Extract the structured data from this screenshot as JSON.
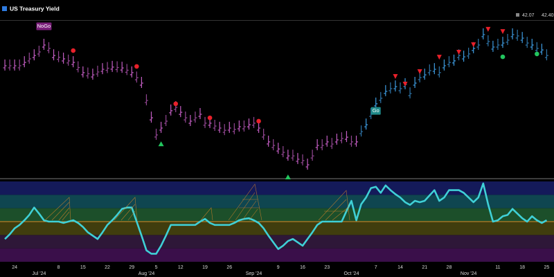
{
  "header": {
    "title": "US Treasury Yield",
    "readouts": [
      "42.07",
      "42.40"
    ]
  },
  "chart_data": [
    {
      "type": "ohlc",
      "xlim": [
        -1,
        112.5
      ],
      "ylim": [
        36,
        43
      ],
      "series": [
        {
          "name": "NoGo",
          "color": "#c35dc3",
          "values": [
            40.98,
            40.98,
            40.98,
            40.98,
            41.13,
            41.29,
            41.44,
            41.6,
            41.91,
            41.76,
            41.44,
            41.36,
            41.29,
            41.2,
            41.13,
            40.9,
            40.67,
            40.62,
            40.57,
            40.7,
            40.82,
            40.87,
            40.92,
            40.9,
            40.88,
            40.78,
            40.67,
            40.44,
            40.2,
            39.42,
            38.64,
            37.87,
            38.18,
            38.49,
            38.96,
            39.11,
            38.89,
            38.64,
            38.49,
            38.64,
            38.8,
            38.4,
            38.4,
            38.27,
            38.18,
            38.08,
            38.18,
            38.12,
            38.24,
            38.24,
            38.33,
            38.4,
            38.18,
            37.87,
            37.56,
            37.4,
            37.24,
            37.09,
            36.93,
            36.93,
            36.78,
            36.72,
            36.53,
            36.93,
            37.4,
            37.4,
            37.56,
            37.46,
            37.65,
            37.71,
            37.77,
            37.56,
            37.56,
            null,
            null,
            null,
            null,
            null,
            null,
            null,
            null,
            null,
            null,
            null,
            null,
            null,
            null,
            null,
            null,
            null,
            null,
            null,
            null,
            null,
            null,
            null,
            null,
            null,
            null,
            null,
            null,
            null,
            null,
            null,
            null,
            null,
            null,
            null,
            null,
            null,
            null,
            null
          ]
        },
        {
          "name": "Go",
          "color": "#3d9be0",
          "values": [
            null,
            null,
            null,
            null,
            null,
            null,
            null,
            null,
            null,
            null,
            null,
            null,
            null,
            null,
            null,
            null,
            null,
            null,
            null,
            null,
            null,
            null,
            null,
            null,
            null,
            null,
            null,
            null,
            null,
            null,
            null,
            null,
            null,
            null,
            null,
            null,
            null,
            null,
            null,
            null,
            null,
            null,
            null,
            null,
            null,
            null,
            null,
            null,
            null,
            null,
            null,
            null,
            null,
            null,
            null,
            null,
            null,
            null,
            null,
            null,
            null,
            null,
            null,
            null,
            null,
            null,
            null,
            null,
            null,
            null,
            null,
            null,
            null,
            38.02,
            38.33,
            38.8,
            39.27,
            39.52,
            39.83,
            39.95,
            40.04,
            39.95,
            40.14,
            39.73,
            40.2,
            40.45,
            40.57,
            40.76,
            40.82,
            40.67,
            40.98,
            41.13,
            41.2,
            41.44,
            41.38,
            41.51,
            41.76,
            41.91,
            42.38,
            42.07,
            41.82,
            41.91,
            42.0,
            42.13,
            42.38,
            42.32,
            42.22,
            42.0,
            41.91,
            41.76,
            41.69,
            41.44
          ]
        }
      ],
      "markers": [
        {
          "shape": "dot",
          "color": "#e8202a",
          "x": [
            14,
            27,
            35,
            42,
            52
          ],
          "y": [
            41.66,
            40.95,
            39.27,
            38.64,
            38.49
          ]
        },
        {
          "shape": "triangle-up",
          "color": "#22c55e",
          "x": [
            32,
            58
          ],
          "y": [
            37.46,
            35.97
          ]
        },
        {
          "shape": "triangle-down",
          "color": "#e8202a",
          "x": [
            80,
            82,
            85,
            89,
            93,
            96,
            99,
            102
          ],
          "y": [
            40.51,
            40.17,
            40.73,
            41.38,
            41.6,
            41.94,
            42.63,
            42.53
          ]
        },
        {
          "shape": "dot",
          "color": "#22c55e",
          "x": [
            102,
            109
          ],
          "y": [
            41.38,
            41.51
          ]
        }
      ]
    },
    {
      "type": "line",
      "xlim": [
        -1,
        112.5
      ],
      "ylim": [
        -6,
        6
      ],
      "yticks": [
        -6,
        -4,
        -2,
        0,
        2,
        4,
        6
      ],
      "band_colors": [
        "#3a0f4a",
        "#2e1738",
        "#403d0e",
        "#1c4f2a",
        "#0f4650",
        "#141a5a"
      ],
      "zero_color": "#d88a2a",
      "color": "#3fd0d6",
      "values": [
        -2.6,
        -1.9,
        -1.0,
        -0.5,
        0.2,
        1.0,
        2.1,
        1.2,
        0.2,
        0,
        0,
        0,
        -0.2,
        0,
        0.2,
        -0.2,
        -0.8,
        -1.6,
        -2.1,
        -2.6,
        -1.6,
        -0.5,
        0.2,
        1.0,
        1.9,
        2.1,
        2.1,
        0,
        -2.1,
        -4.3,
        -4.8,
        -4.8,
        -3.6,
        -2.1,
        -0.5,
        -0.5,
        -0.5,
        -0.5,
        -0.5,
        -0.5,
        0,
        0.4,
        -0.2,
        -0.5,
        -0.5,
        -0.5,
        -0.5,
        -0.2,
        0.2,
        0.4,
        0.5,
        0.2,
        -0.2,
        -1.0,
        -2.1,
        -3.1,
        -4.1,
        -3.6,
        -2.9,
        -2.6,
        -3.1,
        -3.6,
        -2.6,
        -1.6,
        -0.5,
        0,
        0,
        0,
        0,
        0,
        1.6,
        3.1,
        0.2,
        2.6,
        3.6,
        5.0,
        5.2,
        4.3,
        5.4,
        4.7,
        4.1,
        3.6,
        2.9,
        2.5,
        3.1,
        2.9,
        3.1,
        3.9,
        4.7,
        3.1,
        3.6,
        4.7,
        4.7,
        4.7,
        4.3,
        3.6,
        2.9,
        3.6,
        5.7,
        2.6,
        0,
        0.2,
        0.8,
        1.0,
        1.9,
        1.2,
        0.5,
        0,
        0.8,
        0.2,
        -0.2,
        0.2
      ],
      "xticks": [
        {
          "value": 2,
          "label": "24"
        },
        {
          "value": 11,
          "label": "8"
        },
        {
          "value": 16,
          "label": "15"
        },
        {
          "value": 21,
          "label": "22"
        },
        {
          "value": 26,
          "label": "29"
        },
        {
          "value": 31,
          "label": "5"
        },
        {
          "value": 36,
          "label": "12"
        },
        {
          "value": 41,
          "label": "19"
        },
        {
          "value": 46,
          "label": "26"
        },
        {
          "value": 56,
          "label": "9"
        },
        {
          "value": 61,
          "label": "16"
        },
        {
          "value": 66,
          "label": "23"
        },
        {
          "value": 76,
          "label": "7"
        },
        {
          "value": 81,
          "label": "14"
        },
        {
          "value": 86,
          "label": "21"
        },
        {
          "value": 91,
          "label": "28"
        },
        {
          "value": 101,
          "label": "11"
        },
        {
          "value": 106,
          "label": "18"
        },
        {
          "value": 111,
          "label": "25"
        }
      ],
      "month_ticks": [
        {
          "value": 7,
          "label": "Jul '24"
        },
        {
          "value": 29,
          "label": "Aug '24"
        },
        {
          "value": 51,
          "label": "Sep '24"
        },
        {
          "value": 71,
          "label": "Oct '24"
        },
        {
          "value": 95,
          "label": "Nov '24"
        }
      ]
    }
  ]
}
